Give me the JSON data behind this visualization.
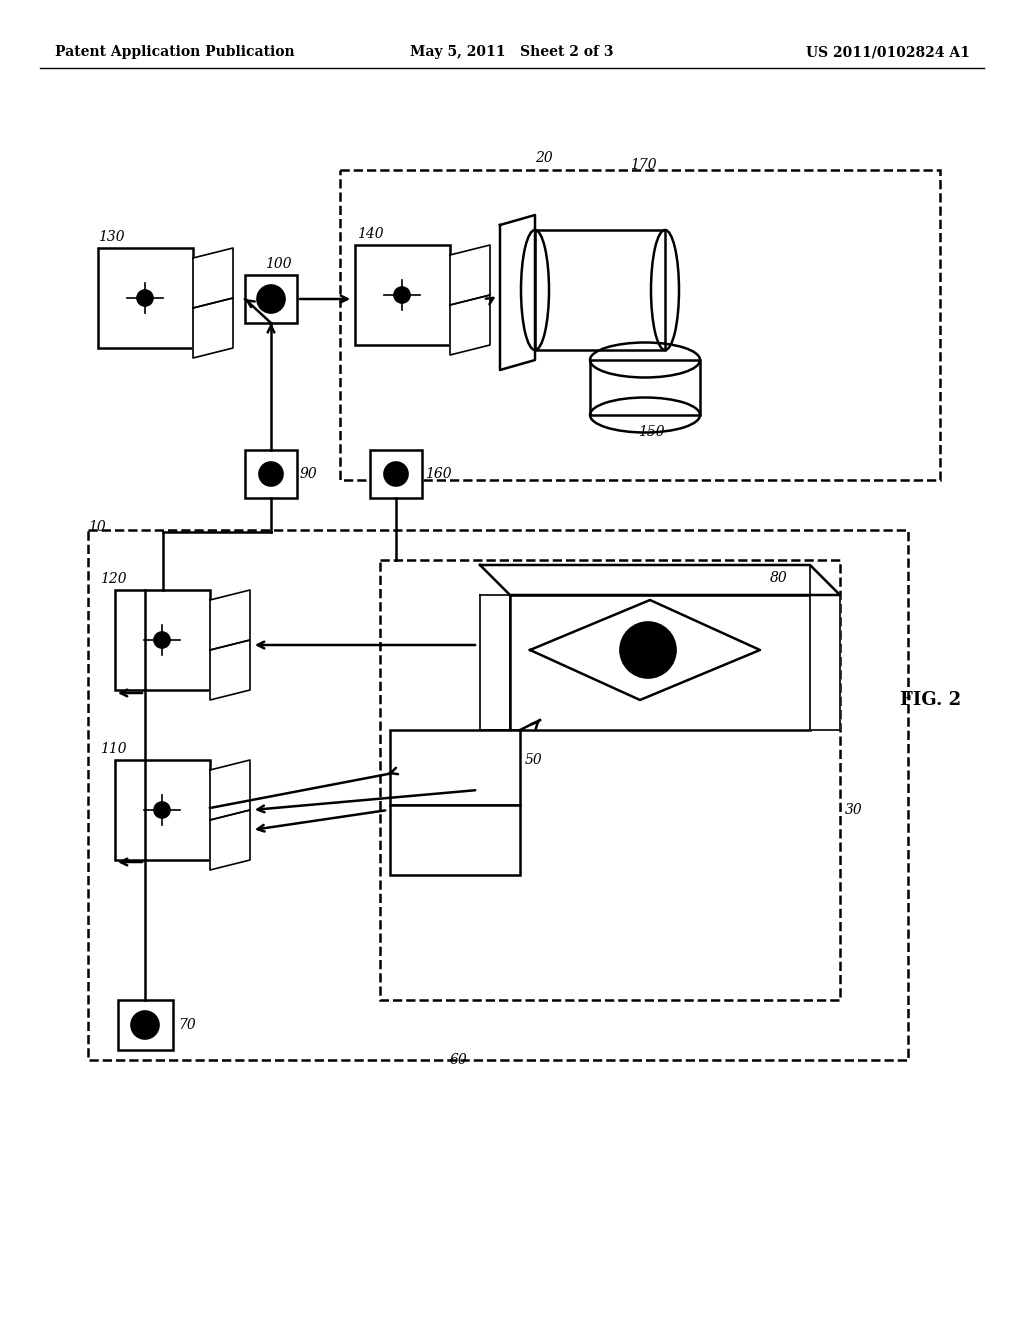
{
  "bg_color": "#ffffff",
  "header_left": "Patent Application Publication",
  "header_center": "May 5, 2011   Sheet 2 of 3",
  "header_right": "US 2011/0102824 A1",
  "fig_label": "FIG. 2"
}
